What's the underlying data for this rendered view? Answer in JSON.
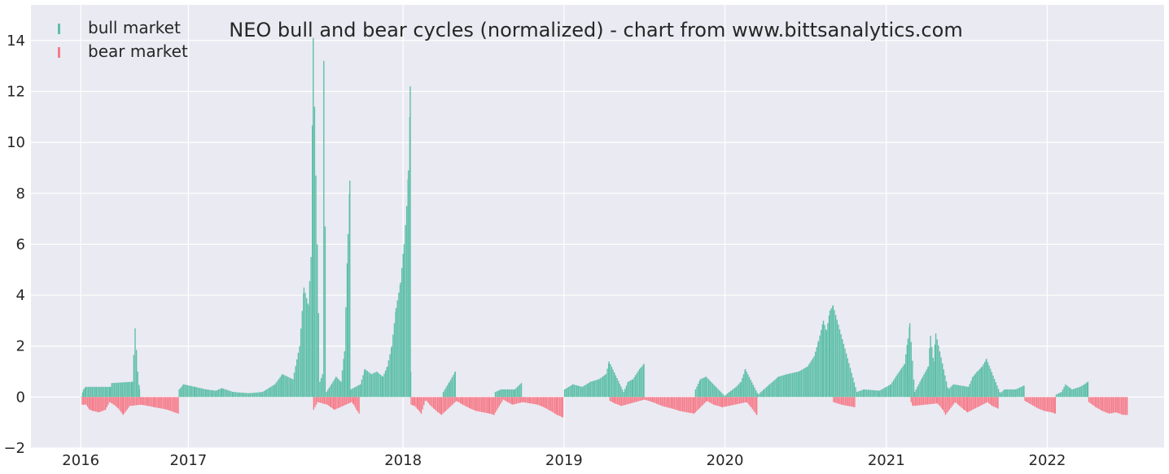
{
  "chart_data": {
    "type": "bar",
    "title": "NEO bull and bear cycles (normalized)  - chart from www.bittsanalytics.com",
    "xlabel": "",
    "ylabel": "",
    "xlim": [
      "2015-09-10",
      "2022-09-23"
    ],
    "ylim": [
      -2,
      15.4
    ],
    "yticks": [
      -2,
      0,
      2,
      4,
      6,
      8,
      10,
      12,
      14
    ],
    "ytick_labels": [
      "−2",
      "0",
      "2",
      "4",
      "6",
      "8",
      "10",
      "12",
      "14"
    ],
    "xticks": [
      "2016-01-01",
      "2016-09-01",
      "2018-01-01",
      "2019-01-01",
      "2020-01-01",
      "2021-01-01",
      "2022-01-01"
    ],
    "xtick_labels": [
      "2016",
      "2017",
      "2018",
      "2019",
      "2020",
      "2021",
      "2022"
    ],
    "grid": true,
    "legend_position": "top-left",
    "colors": {
      "bull": "#5dbfa8",
      "bear": "#f67c8a",
      "background": "#eaeaf2",
      "grid": "#ffffff"
    },
    "series": [
      {
        "name": "bull market",
        "key": "bull",
        "points": [
          [
            "2016-01-01",
            0.0
          ],
          [
            "2016-01-06",
            0.3
          ],
          [
            "2016-01-11",
            0.4
          ],
          [
            "2016-03-07",
            0.4
          ],
          [
            "2016-03-10",
            0.55
          ],
          [
            "2016-04-26",
            0.6
          ],
          [
            "2016-05-02",
            2.7
          ],
          [
            "2016-05-08",
            1.0
          ],
          [
            "2016-05-12",
            0.3
          ],
          [
            "2016-08-10",
            0.3
          ],
          [
            "2016-08-20",
            0.5
          ],
          [
            "2016-09-15",
            0.4
          ],
          [
            "2016-10-10",
            0.3
          ],
          [
            "2016-11-01",
            0.25
          ],
          [
            "2016-11-15",
            0.35
          ],
          [
            "2016-12-10",
            0.2
          ],
          [
            "2017-01-15",
            0.15
          ],
          [
            "2017-02-15",
            0.2
          ],
          [
            "2017-03-15",
            0.5
          ],
          [
            "2017-04-01",
            0.9
          ],
          [
            "2017-04-25",
            0.7
          ],
          [
            "2017-05-10",
            2.0
          ],
          [
            "2017-05-20",
            4.3
          ],
          [
            "2017-05-30",
            3.6
          ],
          [
            "2017-06-05",
            5.5
          ],
          [
            "2017-06-10",
            14.1
          ],
          [
            "2017-06-25",
            0.6
          ],
          [
            "2017-07-01",
            0.9
          ],
          [
            "2017-07-04",
            13.2
          ],
          [
            "2017-07-10",
            0.2
          ],
          [
            "2017-08-01",
            0.8
          ],
          [
            "2017-08-12",
            0.6
          ],
          [
            "2017-08-20",
            1.8
          ],
          [
            "2017-08-28",
            6.4
          ],
          [
            "2017-09-01",
            8.5
          ],
          [
            "2017-09-03",
            0.3
          ],
          [
            "2017-09-25",
            0.5
          ],
          [
            "2017-10-05",
            1.1
          ],
          [
            "2017-10-20",
            0.9
          ],
          [
            "2017-11-01",
            1.0
          ],
          [
            "2017-11-15",
            0.8
          ],
          [
            "2017-11-25",
            1.2
          ],
          [
            "2017-12-05",
            2.0
          ],
          [
            "2017-12-15",
            3.5
          ],
          [
            "2017-12-25",
            4.5
          ],
          [
            "2018-01-02",
            6.0
          ],
          [
            "2018-01-08",
            7.5
          ],
          [
            "2018-01-12",
            8.9
          ],
          [
            "2018-01-15",
            11.0
          ],
          [
            "2018-01-16",
            12.2
          ],
          [
            "2018-01-17",
            1.0
          ],
          [
            "2018-04-01",
            0.2
          ],
          [
            "2018-04-15",
            0.6
          ],
          [
            "2018-04-28",
            1.0
          ],
          [
            "2018-07-28",
            0.2
          ],
          [
            "2018-08-10",
            0.3
          ],
          [
            "2018-09-10",
            0.3
          ],
          [
            "2018-09-25",
            0.55
          ],
          [
            "2019-01-01",
            0.3
          ],
          [
            "2019-01-20",
            0.5
          ],
          [
            "2019-02-10",
            0.4
          ],
          [
            "2019-03-01",
            0.6
          ],
          [
            "2019-03-20",
            0.7
          ],
          [
            "2019-04-05",
            0.9
          ],
          [
            "2019-04-12",
            1.4
          ],
          [
            "2019-05-15",
            0.2
          ],
          [
            "2019-05-25",
            0.6
          ],
          [
            "2019-06-05",
            0.7
          ],
          [
            "2019-06-20",
            1.1
          ],
          [
            "2019-06-30",
            1.3
          ],
          [
            "2019-10-25",
            0.3
          ],
          [
            "2019-11-05",
            0.7
          ],
          [
            "2019-11-18",
            0.8
          ],
          [
            "2019-12-30",
            0.05
          ],
          [
            "2020-01-10",
            0.2
          ],
          [
            "2020-01-25",
            0.4
          ],
          [
            "2020-02-05",
            0.6
          ],
          [
            "2020-02-15",
            1.1
          ],
          [
            "2020-03-15",
            0.1
          ],
          [
            "2020-03-28",
            0.3
          ],
          [
            "2020-04-10",
            0.5
          ],
          [
            "2020-04-30",
            0.8
          ],
          [
            "2020-05-20",
            0.9
          ],
          [
            "2020-06-15",
            1.0
          ],
          [
            "2020-07-05",
            1.2
          ],
          [
            "2020-07-20",
            1.6
          ],
          [
            "2020-07-30",
            2.2
          ],
          [
            "2020-08-10",
            3.0
          ],
          [
            "2020-08-17",
            2.6
          ],
          [
            "2020-08-25",
            3.4
          ],
          [
            "2020-09-01",
            3.6
          ],
          [
            "2020-10-25",
            0.2
          ],
          [
            "2020-11-10",
            0.3
          ],
          [
            "2020-12-15",
            0.25
          ],
          [
            "2021-01-10",
            0.5
          ],
          [
            "2021-01-25",
            0.9
          ],
          [
            "2021-02-10",
            1.3
          ],
          [
            "2021-02-18",
            2.3
          ],
          [
            "2021-02-22",
            2.9
          ],
          [
            "2021-03-05",
            0.2
          ],
          [
            "2021-03-20",
            0.7
          ],
          [
            "2021-04-05",
            1.2
          ],
          [
            "2021-04-10",
            2.4
          ],
          [
            "2021-04-17",
            1.4
          ],
          [
            "2021-04-22",
            2.5
          ],
          [
            "2021-05-20",
            0.3
          ],
          [
            "2021-06-01",
            0.5
          ],
          [
            "2021-07-05",
            0.4
          ],
          [
            "2021-07-15",
            0.8
          ],
          [
            "2021-07-25",
            1.0
          ],
          [
            "2021-08-05",
            1.2
          ],
          [
            "2021-08-15",
            1.5
          ],
          [
            "2021-09-15",
            0.15
          ],
          [
            "2021-09-25",
            0.3
          ],
          [
            "2021-10-20",
            0.3
          ],
          [
            "2021-11-08",
            0.45
          ],
          [
            "2022-01-20",
            0.1
          ],
          [
            "2022-02-01",
            0.2
          ],
          [
            "2022-02-10",
            0.5
          ],
          [
            "2022-02-25",
            0.3
          ],
          [
            "2022-03-15",
            0.4
          ],
          [
            "2022-03-25",
            0.5
          ],
          [
            "2022-04-02",
            0.6
          ]
        ]
      },
      {
        "name": "bear market",
        "key": "bear",
        "points": [
          [
            "2016-01-03",
            -0.3
          ],
          [
            "2016-01-12",
            -0.3
          ],
          [
            "2016-01-20",
            -0.5
          ],
          [
            "2016-01-28",
            -0.55
          ],
          [
            "2016-02-10",
            -0.6
          ],
          [
            "2016-02-25",
            -0.5
          ],
          [
            "2016-03-05",
            -0.2
          ],
          [
            "2016-03-15",
            -0.3
          ],
          [
            "2016-03-25",
            -0.45
          ],
          [
            "2016-04-05",
            -0.7
          ],
          [
            "2016-04-20",
            -0.35
          ],
          [
            "2016-05-15",
            -0.3
          ],
          [
            "2016-06-01",
            -0.35
          ],
          [
            "2016-06-15",
            -0.4
          ],
          [
            "2016-07-01",
            -0.45
          ],
          [
            "2016-07-15",
            -0.5
          ],
          [
            "2016-07-30",
            -0.6
          ],
          [
            "2016-08-08",
            -0.65
          ],
          [
            "2017-06-11",
            -0.5
          ],
          [
            "2017-06-20",
            -0.2
          ],
          [
            "2017-07-12",
            -0.3
          ],
          [
            "2017-07-20",
            -0.4
          ],
          [
            "2017-07-28",
            -0.5
          ],
          [
            "2017-09-05",
            -0.2
          ],
          [
            "2017-09-10",
            -0.3
          ],
          [
            "2017-09-16",
            -0.5
          ],
          [
            "2017-09-22",
            -0.65
          ],
          [
            "2018-01-18",
            -0.3
          ],
          [
            "2018-01-26",
            -0.35
          ],
          [
            "2018-02-03",
            -0.5
          ],
          [
            "2018-02-10",
            -0.65
          ],
          [
            "2018-02-20",
            -0.1
          ],
          [
            "2018-03-01",
            -0.3
          ],
          [
            "2018-03-10",
            -0.45
          ],
          [
            "2018-03-20",
            -0.6
          ],
          [
            "2018-03-28",
            -0.7
          ],
          [
            "2018-05-01",
            -0.15
          ],
          [
            "2018-05-15",
            -0.3
          ],
          [
            "2018-06-01",
            -0.45
          ],
          [
            "2018-06-15",
            -0.55
          ],
          [
            "2018-07-01",
            -0.6
          ],
          [
            "2018-07-15",
            -0.65
          ],
          [
            "2018-07-25",
            -0.7
          ],
          [
            "2018-08-15",
            -0.1
          ],
          [
            "2018-08-25",
            -0.2
          ],
          [
            "2018-09-05",
            -0.3
          ],
          [
            "2018-09-28",
            -0.2
          ],
          [
            "2018-10-15",
            -0.25
          ],
          [
            "2018-11-01",
            -0.3
          ],
          [
            "2018-11-15",
            -0.4
          ],
          [
            "2018-12-01",
            -0.55
          ],
          [
            "2018-12-15",
            -0.7
          ],
          [
            "2018-12-28",
            -0.8
          ],
          [
            "2019-04-14",
            -0.15
          ],
          [
            "2019-04-25",
            -0.25
          ],
          [
            "2019-05-10",
            -0.35
          ],
          [
            "2019-07-01",
            -0.1
          ],
          [
            "2019-07-20",
            -0.2
          ],
          [
            "2019-08-10",
            -0.35
          ],
          [
            "2019-09-01",
            -0.45
          ],
          [
            "2019-09-20",
            -0.55
          ],
          [
            "2019-10-05",
            -0.6
          ],
          [
            "2019-10-22",
            -0.65
          ],
          [
            "2019-11-20",
            -0.15
          ],
          [
            "2019-12-05",
            -0.3
          ],
          [
            "2019-12-25",
            -0.4
          ],
          [
            "2020-02-18",
            -0.2
          ],
          [
            "2020-02-28",
            -0.4
          ],
          [
            "2020-03-05",
            -0.55
          ],
          [
            "2020-03-12",
            -0.7
          ],
          [
            "2020-09-02",
            -0.2
          ],
          [
            "2020-09-20",
            -0.3
          ],
          [
            "2020-10-05",
            -0.35
          ],
          [
            "2020-10-20",
            -0.4
          ],
          [
            "2021-02-25",
            -0.2
          ],
          [
            "2021-03-01",
            -0.35
          ],
          [
            "2021-04-25",
            -0.25
          ],
          [
            "2021-05-01",
            -0.35
          ],
          [
            "2021-05-08",
            -0.5
          ],
          [
            "2021-05-14",
            -0.7
          ],
          [
            "2021-06-05",
            -0.2
          ],
          [
            "2021-06-15",
            -0.35
          ],
          [
            "2021-06-25",
            -0.5
          ],
          [
            "2021-07-03",
            -0.6
          ],
          [
            "2021-08-17",
            -0.2
          ],
          [
            "2021-08-28",
            -0.35
          ],
          [
            "2021-09-10",
            -0.45
          ],
          [
            "2021-11-10",
            -0.15
          ],
          [
            "2021-11-25",
            -0.3
          ],
          [
            "2021-12-10",
            -0.45
          ],
          [
            "2021-12-25",
            -0.55
          ],
          [
            "2022-01-10",
            -0.6
          ],
          [
            "2022-01-18",
            -0.65
          ],
          [
            "2022-04-04",
            -0.2
          ],
          [
            "2022-04-20",
            -0.4
          ],
          [
            "2022-05-05",
            -0.55
          ],
          [
            "2022-05-20",
            -0.65
          ],
          [
            "2022-06-05",
            -0.6
          ],
          [
            "2022-06-20",
            -0.7
          ],
          [
            "2022-06-30",
            -0.7
          ]
        ]
      }
    ]
  }
}
